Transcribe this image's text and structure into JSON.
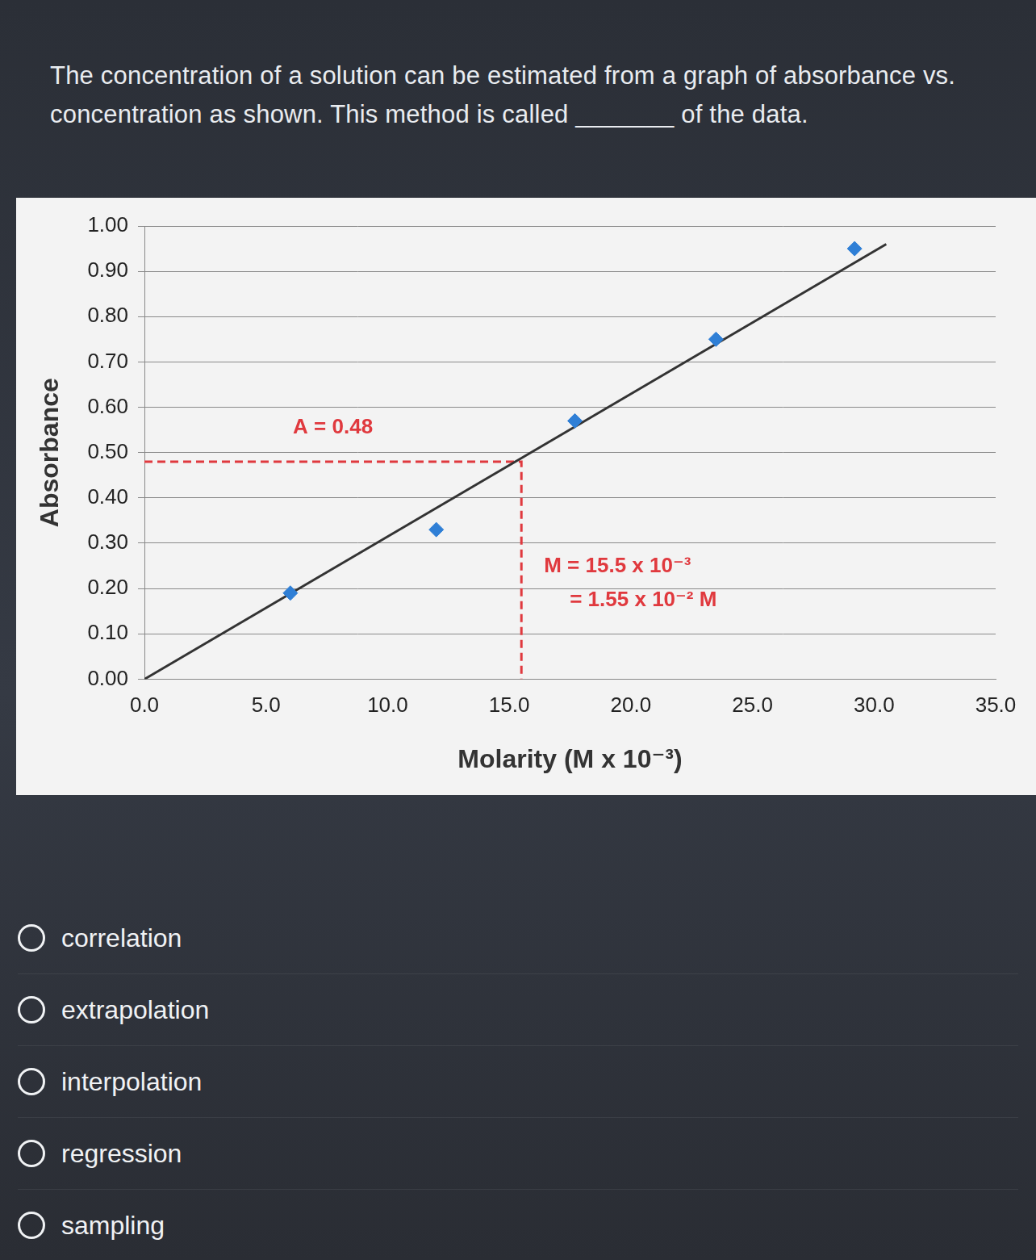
{
  "question": "The concentration of a solution can be estimated from a graph of absorbance vs. concentration as shown. This method is called _______ of the data.",
  "options": [
    "correlation",
    "extrapolation",
    "interpolation",
    "regression",
    "sampling"
  ],
  "chart_data": {
    "type": "scatter",
    "x_label": "Molarity (M x 10⁻³)",
    "y_label": "Absorbance",
    "xlim": [
      0,
      35
    ],
    "ylim": [
      0,
      1
    ],
    "xticks": [
      {
        "value": 0,
        "label": "0.0"
      },
      {
        "value": 5,
        "label": "5.0"
      },
      {
        "value": 10,
        "label": "10.0"
      },
      {
        "value": 15,
        "label": "15.0"
      },
      {
        "value": 20,
        "label": "20.0"
      },
      {
        "value": 25,
        "label": "25.0"
      },
      {
        "value": 30,
        "label": "30.0"
      },
      {
        "value": 35,
        "label": "35.0"
      }
    ],
    "yticks": [
      {
        "value": 0,
        "label": "0.00"
      },
      {
        "value": 0.1,
        "label": "0.10"
      },
      {
        "value": 0.2,
        "label": "0.20"
      },
      {
        "value": 0.3,
        "label": "0.30"
      },
      {
        "value": 0.4,
        "label": "0.40"
      },
      {
        "value": 0.5,
        "label": "0.50"
      },
      {
        "value": 0.6,
        "label": "0.60"
      },
      {
        "value": 0.7,
        "label": "0.70"
      },
      {
        "value": 0.8,
        "label": "0.80"
      },
      {
        "value": 0.9,
        "label": "0.90"
      },
      {
        "value": 1,
        "label": "1.00"
      }
    ],
    "grid": true,
    "series": [
      {
        "color": "#2f7fd6",
        "marker": "diamond",
        "x": [
          6.0,
          12.0,
          17.7,
          23.5,
          29.2
        ],
        "values": [
          0.19,
          0.33,
          0.57,
          0.75,
          0.95
        ]
      },
      {
        "type": "line",
        "color": "#333333",
        "marker": "none",
        "line_style": "solid",
        "x": [
          0,
          30.5
        ],
        "values": [
          0,
          0.96
        ]
      }
    ],
    "reading": {
      "x": 15.5,
      "y": 0.48,
      "color": "#e0393e",
      "line_style": "dashed",
      "labels": [
        "A = 0.48",
        "M = 15.5 x 10⁻³",
        "= 1.55 x 10⁻² M"
      ]
    }
  }
}
